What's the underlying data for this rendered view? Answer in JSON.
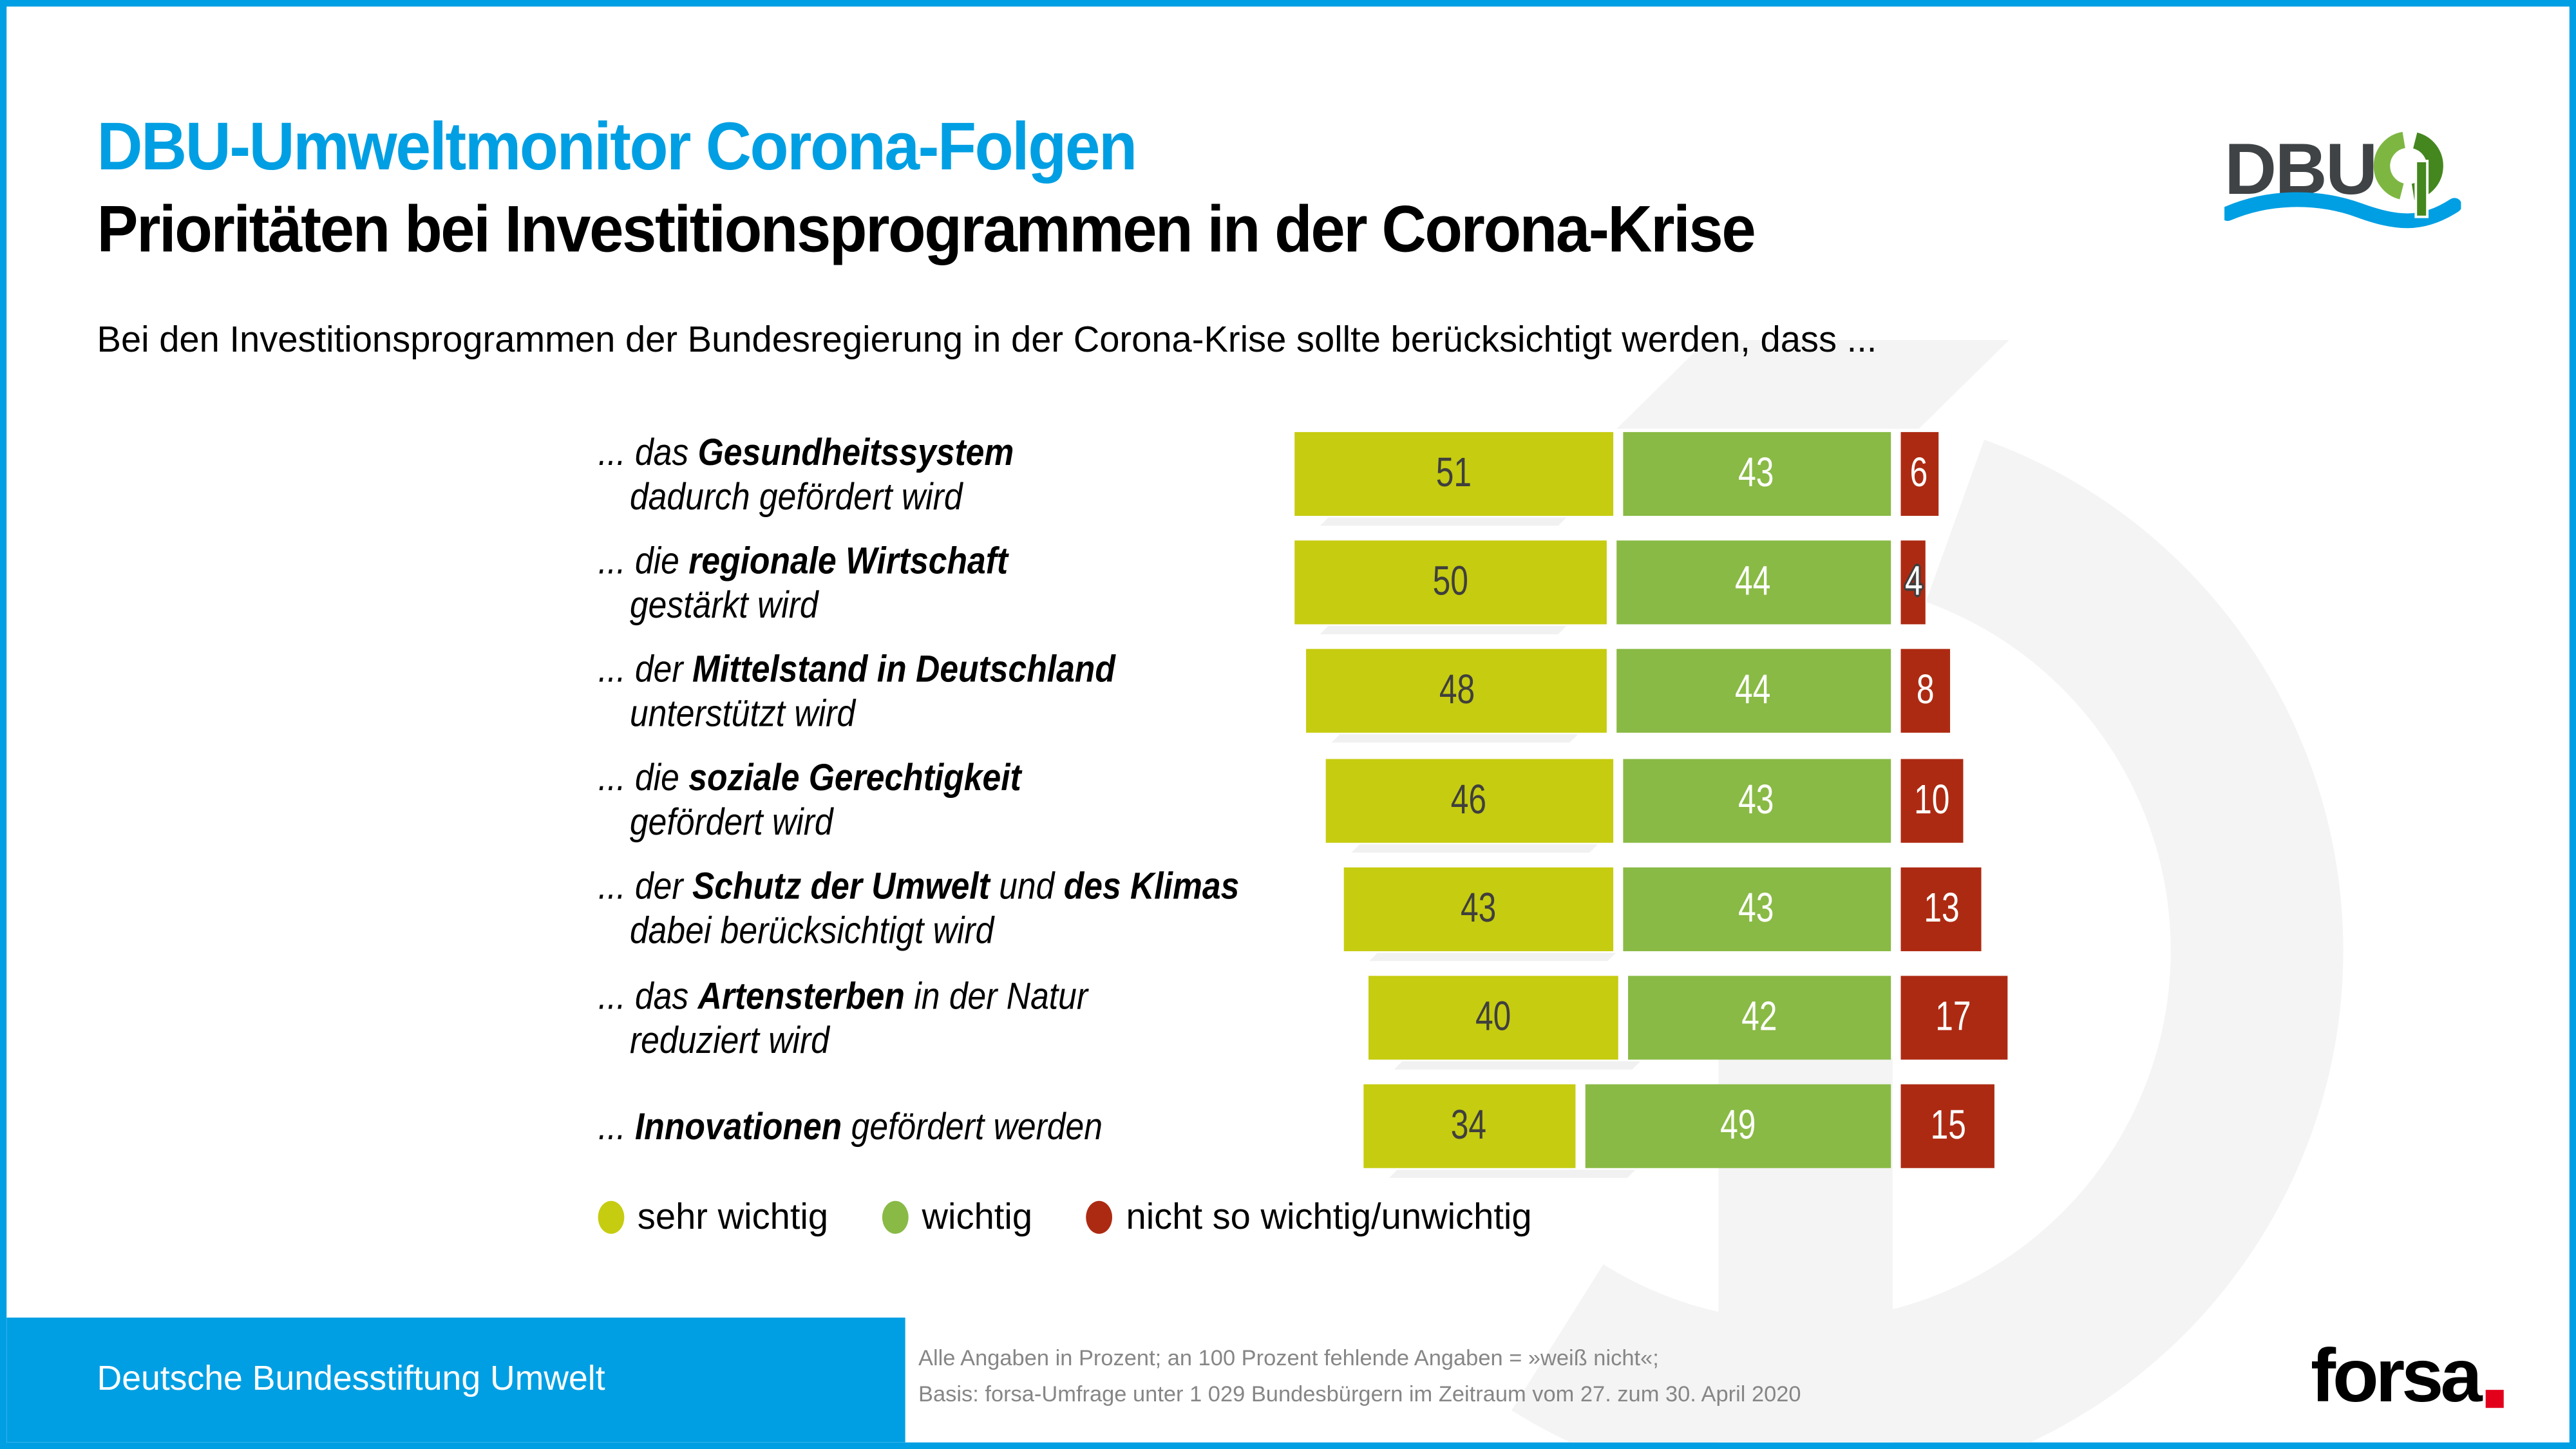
{
  "header": {
    "title_blue": "DBU-Umweltmonitor Corona-Folgen",
    "title_black": "Prioritäten bei Investitionsprogrammen in der Corona-Krise",
    "description": "Bei den Investitionsprogrammen der Bundesregierung in der Corona-Krise sollte berücksichtigt werden, dass ...",
    "dbu_logo_text": "DBU"
  },
  "chart_data": {
    "type": "bar",
    "orientation": "horizontal",
    "stacked": true,
    "unit": "percent",
    "series": [
      "sehr wichtig",
      "wichtig",
      "nicht so wichtig/unwichtig"
    ],
    "colors": [
      "#c6cc10",
      "#89ba45",
      "#ad2a12"
    ],
    "number_color_on_first_segment": "#3f3f3e",
    "number_color_on_other_segments": "#ffffff",
    "layout_hint": "boundary between second and third segment is right-aligned across rows; third segment extends right",
    "categories": [
      "... das Gesundheitssystem dadurch gefördert wird",
      "... die regionale Wirtschaft gestärkt wird",
      "... der Mittelstand in Deutschland unterstützt wird",
      "... die soziale Gerechtigkeit gefördert wird",
      "... der Schutz der Umwelt und des Klimas dabei berücksichtigt wird",
      "... das Artensterben in der Natur reduziert wird",
      "... Innovationen gefördert werden"
    ],
    "rows": [
      {
        "label": [
          {
            "t": "... das ",
            "b": false
          },
          {
            "t": "Gesundheitssystem",
            "b": true
          }
        ],
        "label2": "dadurch gefördert wird",
        "values": [
          51,
          43,
          6
        ]
      },
      {
        "label": [
          {
            "t": "... die ",
            "b": false
          },
          {
            "t": "regionale Wirtschaft",
            "b": true
          }
        ],
        "label2": "gestärkt wird",
        "values": [
          50,
          44,
          4
        ]
      },
      {
        "label": [
          {
            "t": "... der ",
            "b": false
          },
          {
            "t": "Mittelstand in Deutschland",
            "b": true
          }
        ],
        "label2": "unterstützt wird",
        "values": [
          48,
          44,
          8
        ]
      },
      {
        "label": [
          {
            "t": "... die ",
            "b": false
          },
          {
            "t": "soziale Gerechtigkeit",
            "b": true
          }
        ],
        "label2": "gefördert wird",
        "values": [
          46,
          43,
          10
        ]
      },
      {
        "label": [
          {
            "t": "... der ",
            "b": false
          },
          {
            "t": "Schutz der Umwelt",
            "b": true
          },
          {
            "t": " und ",
            "b": false
          },
          {
            "t": "des Klimas",
            "b": true
          }
        ],
        "label2": "dabei berücksichtigt wird",
        "values": [
          43,
          43,
          13
        ]
      },
      {
        "label": [
          {
            "t": "... das ",
            "b": false
          },
          {
            "t": "Artensterben",
            "b": true
          },
          {
            "t": " in der Natur",
            "b": false
          }
        ],
        "label2": "reduziert wird",
        "values": [
          40,
          42,
          17
        ]
      },
      {
        "label": [
          {
            "t": "... ",
            "b": false
          },
          {
            "t": "Innovationen",
            "b": true
          },
          {
            "t": " gefördert werden",
            "b": false
          }
        ],
        "label2": "",
        "values": [
          34,
          49,
          15
        ]
      }
    ]
  },
  "legend": {
    "items": [
      {
        "label": "sehr wichtig",
        "color": "#c6cc10"
      },
      {
        "label": "wichtig",
        "color": "#89ba45"
      },
      {
        "label": "nicht so wichtig/unwichtig",
        "color": "#ad2a12"
      }
    ]
  },
  "footer": {
    "band_label": "Deutsche Bundesstiftung Umwelt",
    "note_line1": "Alle Angaben in Prozent; an 100 Prozent fehlende Angaben = »weiß nicht«;",
    "note_line2": "Basis: forsa-Umfrage unter 1 029 Bundesbürgern im Zeitraum vom 27. zum 30. April 2020",
    "forsa_logo_text": "forsa"
  },
  "colors": {
    "accent_blue": "#009fe3",
    "watermark_gray": "#f4f4f4",
    "logo_light_green": "#7db742",
    "logo_dark_green": "#45871f",
    "forsa_red": "#e3001b"
  }
}
